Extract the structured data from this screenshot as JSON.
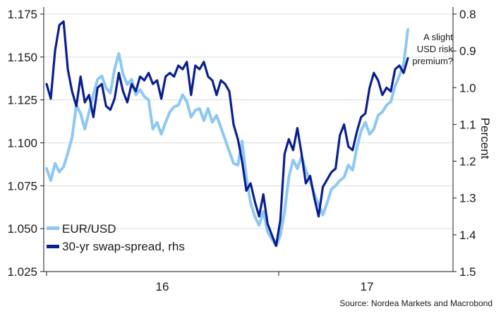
{
  "chart_data": {
    "type": "line",
    "title": "",
    "xlabel": "",
    "y_left": {
      "label": "",
      "lim": [
        1.025,
        1.175
      ],
      "ticks": [
        "1.025",
        "1.050",
        "1.075",
        "1.100",
        "1.125",
        "1.150",
        "1.175"
      ]
    },
    "y_right": {
      "label": "Percent",
      "lim": [
        0.8,
        1.5
      ],
      "inverted": true,
      "ticks": [
        "0.8",
        "0.9",
        "1.0",
        "1.1",
        "1.2",
        "1.3",
        "1.4",
        "1.5"
      ]
    },
    "x_ticks": [
      "16",
      "17"
    ],
    "grid": true,
    "legend_position": "bottom-left",
    "annotation": [
      "A slight",
      "USD risk",
      "premium?"
    ],
    "source": "Source: Nordea Markets and Macrobond",
    "colors": {
      "eurusd": "#8ec8f2",
      "spread": "#0a1f8f",
      "grid": "#dcdcdc",
      "axis": "#1a1a1a"
    },
    "series": [
      {
        "name": "EUR/USD",
        "axis": "left",
        "t": [
          0,
          2,
          4,
          6,
          8,
          10,
          12,
          14,
          16,
          18,
          20,
          22,
          24,
          26,
          28,
          30,
          32,
          34,
          36,
          38,
          40,
          42,
          44,
          46,
          48,
          50,
          52,
          54,
          56,
          58,
          60,
          62,
          64,
          66,
          68,
          70,
          72,
          74,
          76,
          78,
          80,
          82,
          84,
          86,
          88,
          90,
          92,
          94,
          96,
          98,
          100,
          102,
          104,
          106,
          108,
          110,
          112,
          114,
          116,
          118,
          120,
          122,
          124,
          126,
          128,
          130,
          132,
          134,
          136,
          138,
          140,
          142,
          144,
          146,
          148,
          150,
          152,
          154,
          156,
          158,
          160,
          162,
          164,
          166,
          168,
          170
        ],
        "values": [
          1.085,
          1.078,
          1.088,
          1.083,
          1.086,
          1.094,
          1.103,
          1.122,
          1.117,
          1.108,
          1.118,
          1.128,
          1.137,
          1.139,
          1.132,
          1.129,
          1.143,
          1.152,
          1.14,
          1.134,
          1.137,
          1.128,
          1.131,
          1.127,
          1.125,
          1.108,
          1.112,
          1.105,
          1.112,
          1.118,
          1.121,
          1.122,
          1.128,
          1.124,
          1.115,
          1.119,
          1.12,
          1.113,
          1.12,
          1.112,
          1.116,
          1.109,
          1.102,
          1.095,
          1.088,
          1.087,
          1.101,
          1.08,
          1.065,
          1.057,
          1.052,
          1.06,
          1.048,
          1.044,
          1.04,
          1.046,
          1.06,
          1.08,
          1.09,
          1.085,
          1.092,
          1.084,
          1.078,
          1.07,
          1.064,
          1.058,
          1.065,
          1.073,
          1.075,
          1.078,
          1.08,
          1.087,
          1.084,
          1.097,
          1.107,
          1.112,
          1.105,
          1.108,
          1.116,
          1.118,
          1.122,
          1.124,
          1.133,
          1.139,
          1.146,
          1.166
        ]
      },
      {
        "name": "30-yr swap-spread, rhs",
        "axis": "right",
        "t": [
          0,
          2,
          4,
          6,
          8,
          10,
          12,
          14,
          16,
          18,
          20,
          22,
          24,
          26,
          28,
          30,
          32,
          34,
          36,
          38,
          40,
          42,
          44,
          46,
          48,
          50,
          52,
          54,
          56,
          58,
          60,
          62,
          64,
          66,
          68,
          70,
          72,
          74,
          76,
          78,
          80,
          82,
          84,
          86,
          88,
          90,
          92,
          94,
          96,
          98,
          100,
          102,
          104,
          106,
          108,
          110,
          112,
          114,
          116,
          118,
          120,
          122,
          124,
          126,
          128,
          130,
          132,
          134,
          136,
          138,
          140,
          142,
          144,
          146,
          148,
          150,
          152,
          154,
          156,
          158,
          160,
          162,
          164,
          166,
          168,
          170
        ],
        "values": [
          0.99,
          1.03,
          0.9,
          0.83,
          0.82,
          0.95,
          1.01,
          1.05,
          0.97,
          1.04,
          1.02,
          1.08,
          1.0,
          0.99,
          1.05,
          1.06,
          1.03,
          0.96,
          1.01,
          1.04,
          0.99,
          1.01,
          0.97,
          0.98,
          0.96,
          0.99,
          0.98,
          1.03,
          0.97,
          0.96,
          0.97,
          0.94,
          0.95,
          0.93,
          1.02,
          0.94,
          0.95,
          0.93,
          0.97,
          0.98,
          1.02,
          0.98,
          0.99,
          1.01,
          1.1,
          1.14,
          1.2,
          1.28,
          1.26,
          1.31,
          1.35,
          1.29,
          1.37,
          1.4,
          1.43,
          1.36,
          1.18,
          1.14,
          1.17,
          1.11,
          1.18,
          1.26,
          1.24,
          1.3,
          1.35,
          1.27,
          1.25,
          1.23,
          1.22,
          1.13,
          1.1,
          1.16,
          1.17,
          1.12,
          1.08,
          1.07,
          1.0,
          0.96,
          0.98,
          1.02,
          1.0,
          1.01,
          0.95,
          0.94,
          0.96,
          0.92
        ]
      }
    ]
  }
}
